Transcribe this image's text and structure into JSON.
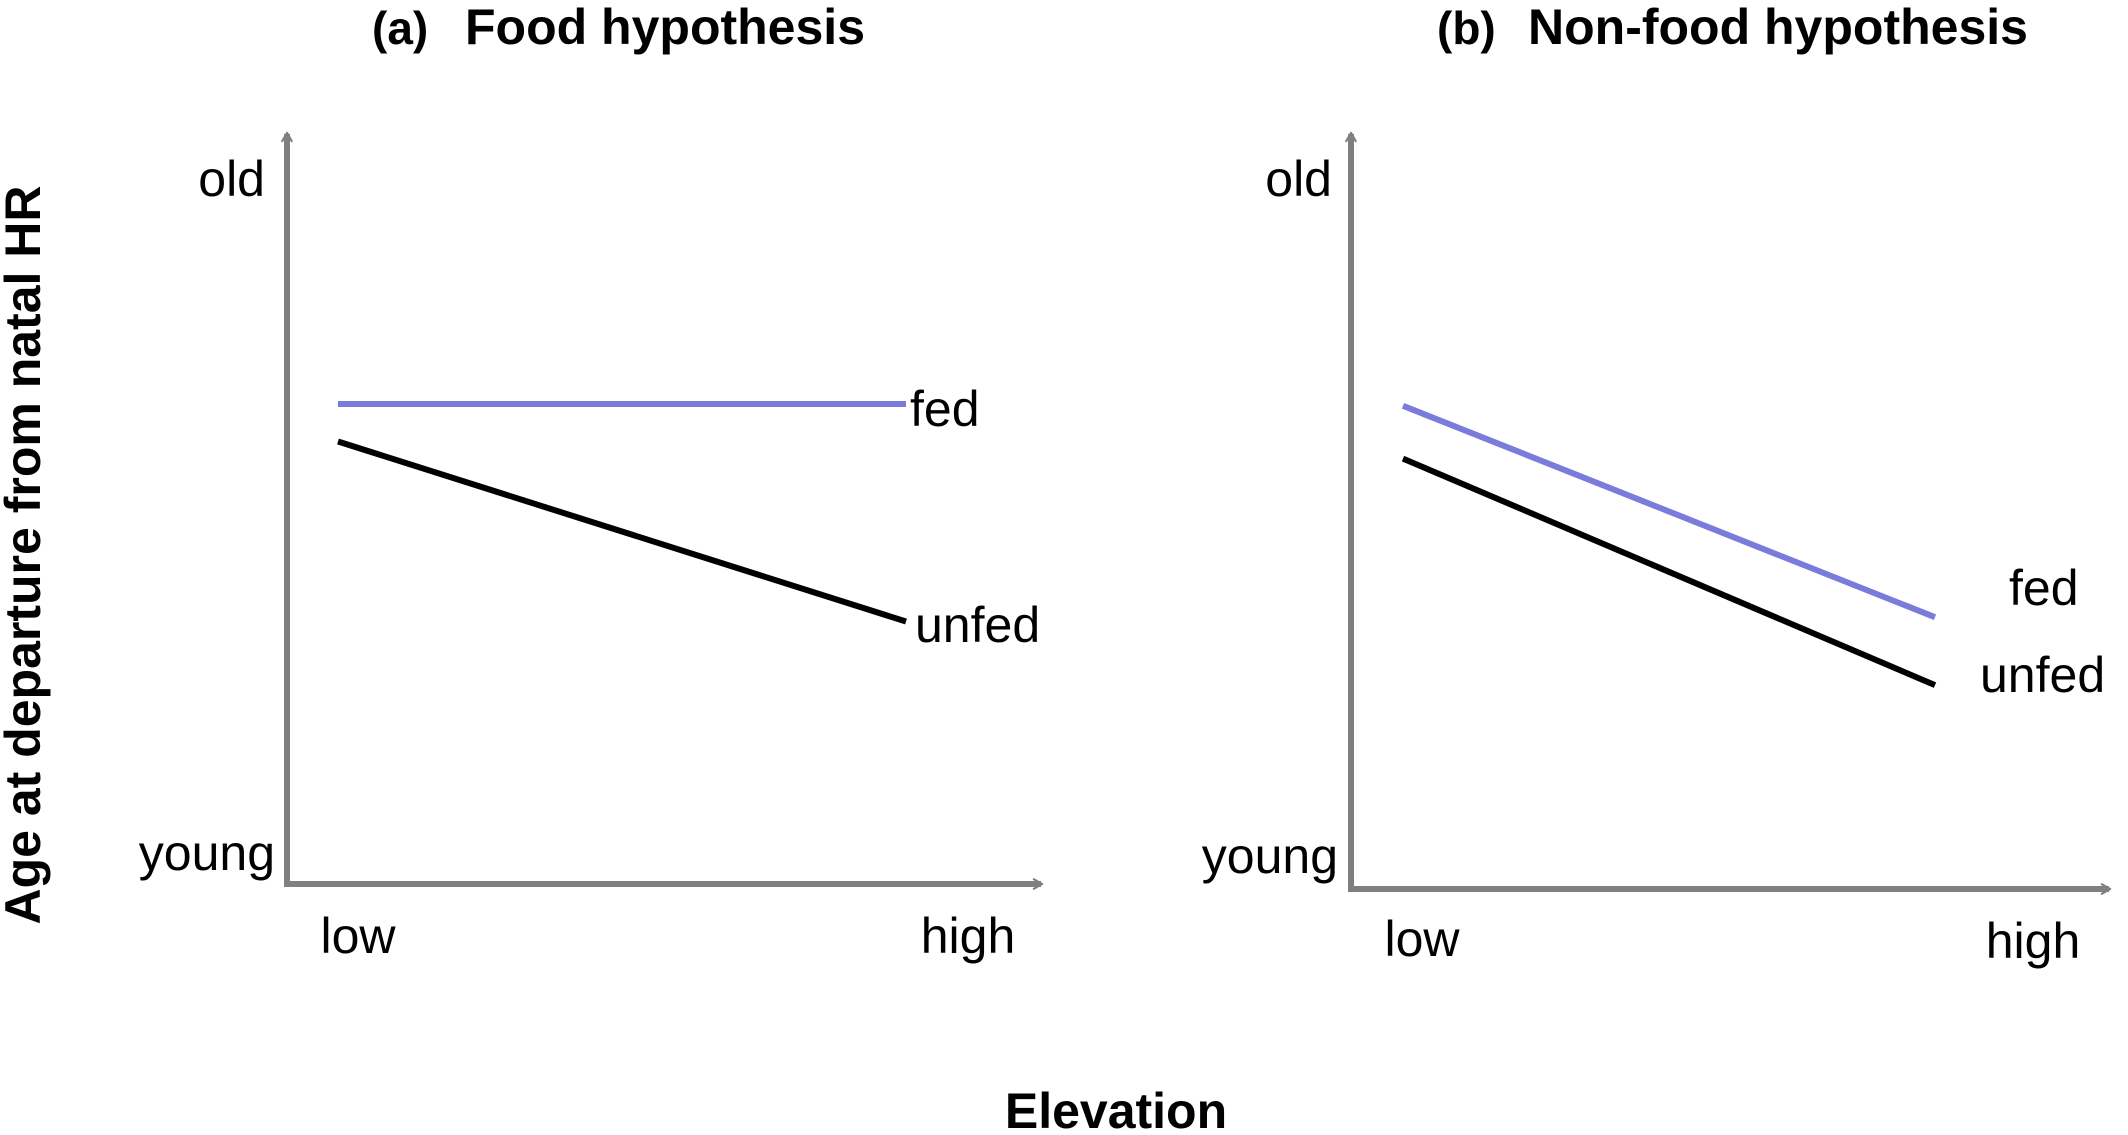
{
  "chart_data": [
    {
      "type": "line",
      "panel_label": "(a)",
      "title": "Food hypothesis",
      "x": [
        "low",
        "high"
      ],
      "y_ticks": [
        "young",
        "old"
      ],
      "ylim": [
        0,
        10
      ],
      "series": [
        {
          "name": "fed",
          "values": [
            6.4,
            6.4
          ],
          "color": "#7b7bdc"
        },
        {
          "name": "unfed",
          "values": [
            5.9,
            3.5
          ],
          "color": "#000000"
        }
      ]
    },
    {
      "type": "line",
      "panel_label": "(b)",
      "title": "Non-food hypothesis",
      "x": [
        "low",
        "high"
      ],
      "y_ticks": [
        "young",
        "old"
      ],
      "ylim": [
        0,
        10
      ],
      "series": [
        {
          "name": "fed",
          "values": [
            6.4,
            3.6
          ],
          "color": "#7b7bdc"
        },
        {
          "name": "unfed",
          "values": [
            5.7,
            2.7
          ],
          "color": "#000000"
        }
      ]
    }
  ],
  "shared": {
    "ylabel": "Age at departure from natal HR",
    "xlabel": "Elevation",
    "axis_color": "#808080"
  }
}
